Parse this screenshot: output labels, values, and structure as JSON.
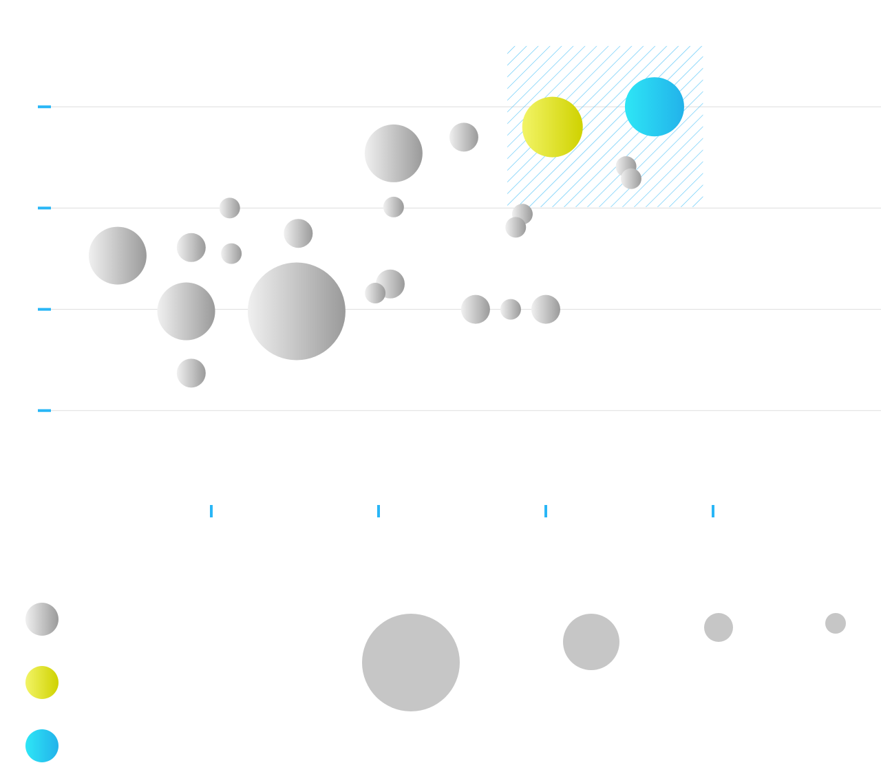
{
  "chart_data": {
    "type": "bubble",
    "xlim": [
      0,
      5
    ],
    "xticks": [
      1,
      2,
      3,
      4
    ],
    "ylim": [
      0,
      5
    ],
    "yticks": [
      1,
      2,
      3,
      4
    ],
    "grid": true,
    "tick_color": "#29b6f6",
    "grid_color": "#dddddd",
    "highlight": {
      "xlim": [
        2.77,
        3.94
      ],
      "ylim": [
        3.01,
        4.6
      ],
      "color": "#4fc3f7"
    },
    "series": [
      {
        "gradient": [
          "#f0f0f0",
          "#9a9a9a"
        ],
        "x": [
          0.44,
          0.88,
          1.11,
          1.12,
          1.52,
          0.85,
          1.51,
          0.88,
          2.09,
          2.51,
          2.09,
          2.07,
          1.98,
          2.58,
          2.79,
          3.0,
          2.86,
          2.82,
          3.48,
          3.51
        ],
        "values": [
          2.53,
          2.61,
          3.0,
          2.55,
          2.75,
          1.98,
          1.98,
          1.37,
          3.54,
          3.7,
          3.01,
          2.25,
          2.16,
          2.0,
          2.0,
          2.0,
          2.94,
          2.81,
          3.41,
          3.29
        ],
        "sizes": [
          42,
          21,
          15,
          15,
          21,
          42,
          71,
          21,
          42,
          21,
          15,
          21,
          15,
          21,
          15,
          21,
          15,
          15,
          15,
          15
        ]
      },
      {
        "gradient": [
          "#f2f466",
          "#cfd200"
        ],
        "x": [
          3.04
        ],
        "values": [
          3.8
        ],
        "sizes": [
          44
        ]
      },
      {
        "gradient": [
          "#2ee6f6",
          "#22b2ea"
        ],
        "x": [
          3.65
        ],
        "values": [
          4.0
        ],
        "sizes": [
          43
        ]
      }
    ],
    "size_legend": {
      "color": "#c6c6c6",
      "sizes": [
        71,
        41,
        21,
        15
      ]
    }
  }
}
